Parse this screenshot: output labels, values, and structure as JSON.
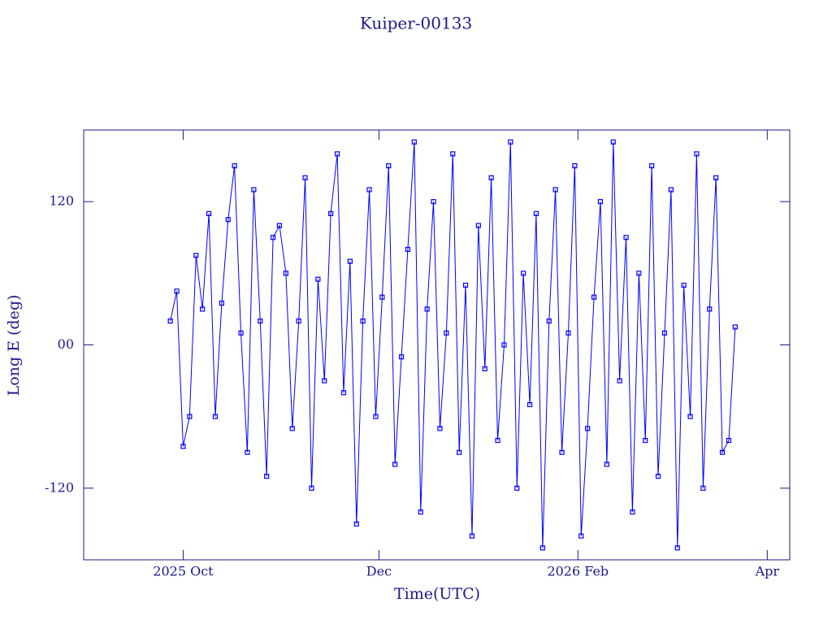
{
  "chart_data": {
    "type": "line",
    "title": "Kuiper-00133",
    "x_label": "Time(UTC)",
    "y_label": "Long E (deg)",
    "x": [
      "2025-09-27",
      "2025-09-29",
      "2025-10-01",
      "2025-10-03",
      "2025-10-05",
      "2025-10-07",
      "2025-10-09",
      "2025-10-11",
      "2025-10-13",
      "2025-10-15",
      "2025-10-17",
      "2025-10-19",
      "2025-10-21",
      "2025-10-23",
      "2025-10-25",
      "2025-10-27",
      "2025-10-29",
      "2025-10-31",
      "2025-11-02",
      "2025-11-04",
      "2025-11-06",
      "2025-11-08",
      "2025-11-10",
      "2025-11-12",
      "2025-11-14",
      "2025-11-16",
      "2025-11-18",
      "2025-11-20",
      "2025-11-22",
      "2025-11-24",
      "2025-11-26",
      "2025-11-28",
      "2025-11-30",
      "2025-12-02",
      "2025-12-04",
      "2025-12-06",
      "2025-12-08",
      "2025-12-10",
      "2025-12-12",
      "2025-12-14",
      "2025-12-16",
      "2025-12-18",
      "2025-12-20",
      "2025-12-22",
      "2025-12-24",
      "2025-12-26",
      "2025-12-28",
      "2025-12-30",
      "2026-01-01",
      "2026-01-03",
      "2026-01-05",
      "2026-01-07",
      "2026-01-09",
      "2026-01-11",
      "2026-01-13",
      "2026-01-15",
      "2026-01-17",
      "2026-01-19",
      "2026-01-21",
      "2026-01-23",
      "2026-01-25",
      "2026-01-27",
      "2026-01-29",
      "2026-01-31",
      "2026-02-02",
      "2026-02-04",
      "2026-02-06",
      "2026-02-08",
      "2026-02-10",
      "2026-02-12",
      "2026-02-14",
      "2026-02-16",
      "2026-02-18",
      "2026-02-20",
      "2026-02-22",
      "2026-02-24",
      "2026-02-26",
      "2026-02-28",
      "2026-03-02",
      "2026-03-04",
      "2026-03-06",
      "2026-03-08",
      "2026-03-10",
      "2026-03-12",
      "2026-03-14",
      "2026-03-16",
      "2026-03-18",
      "2026-03-20",
      "2026-03-22"
    ],
    "series": [
      {
        "name": "Kuiper-00133",
        "color": "#0000ff",
        "values": [
          20,
          45,
          -85,
          -60,
          75,
          30,
          110,
          -60,
          35,
          105,
          150,
          10,
          -90,
          130,
          20,
          -110,
          90,
          100,
          60,
          -70,
          20,
          140,
          -120,
          55,
          -30,
          110,
          160,
          -40,
          70,
          -150,
          20,
          130,
          -60,
          40,
          150,
          -100,
          -10,
          80,
          170,
          -140,
          30,
          120,
          -70,
          10,
          160,
          -90,
          50,
          -160,
          100,
          -20,
          140,
          -80,
          0,
          170,
          -120,
          60,
          -50,
          110,
          -170,
          20,
          130,
          -90,
          10,
          150,
          -160,
          -70,
          40,
          120,
          -100,
          170,
          -30,
          90,
          -140,
          60,
          -80,
          150,
          -110,
          10,
          130,
          -170,
          50,
          -60,
          160,
          -120,
          30,
          140,
          -90,
          -80,
          15
        ]
      }
    ],
    "xlim": [
      "2025-08-31",
      "2026-04-08"
    ],
    "xticks": [
      {
        "value": "2025-10",
        "label": "2025 Oct"
      },
      {
        "value": "2025-12",
        "label": "Dec"
      },
      {
        "value": "2026-02",
        "label": "2026 Feb"
      },
      {
        "value": "2026-04",
        "label": "Apr"
      }
    ],
    "ylim": [
      -180,
      180
    ],
    "yticks": [
      -120,
      {
        "value": 0,
        "label": "00"
      },
      120
    ],
    "axis_color": "#1a1a8c"
  }
}
